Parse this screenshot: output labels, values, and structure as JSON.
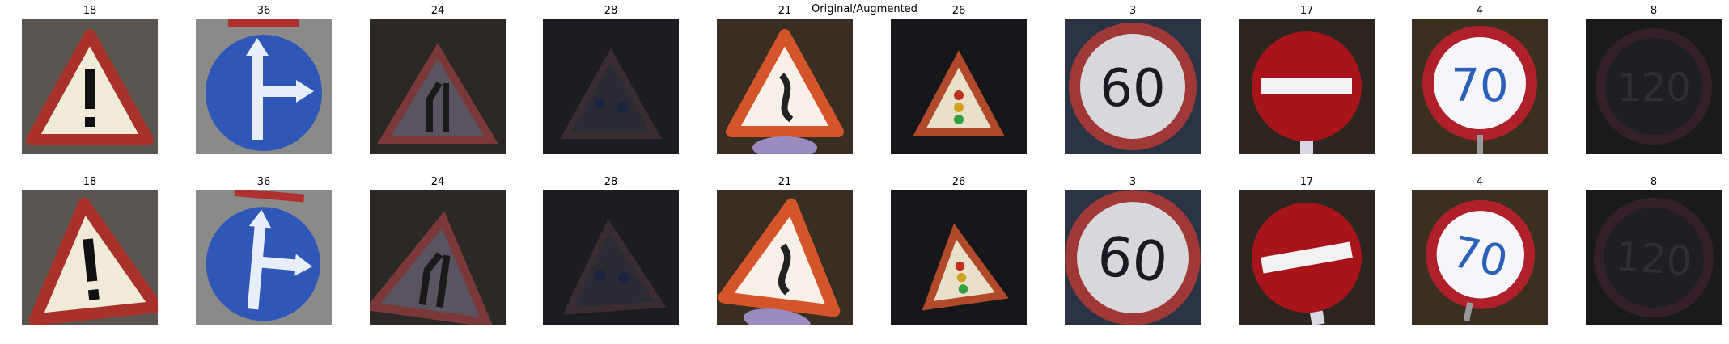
{
  "figure": {
    "suptitle": "Original/Augmented"
  },
  "rows": [
    {
      "name": "original",
      "cells": [
        {
          "label": "18",
          "sign": "warning-exclamation",
          "bg": "#5a5550"
        },
        {
          "label": "36",
          "sign": "blue-straight-or-right",
          "bg": "#8a8a88"
        },
        {
          "label": "24",
          "sign": "road-narrows-right",
          "bg": "#2b2826"
        },
        {
          "label": "28",
          "sign": "children-crossing",
          "bg": "#1c1d22"
        },
        {
          "label": "21",
          "sign": "double-curve",
          "bg": "#3a2d22"
        },
        {
          "label": "26",
          "sign": "traffic-signals",
          "bg": "#15171b"
        },
        {
          "label": "3",
          "sign": "speed-limit-60",
          "bg": "#2a3445"
        },
        {
          "label": "17",
          "sign": "no-entry",
          "bg": "#2d2620"
        },
        {
          "label": "4",
          "sign": "speed-limit-70",
          "bg": "#3b3020"
        },
        {
          "label": "8",
          "sign": "speed-limit-120",
          "bg": "#191a1c"
        }
      ]
    },
    {
      "name": "augmented",
      "cells": [
        {
          "label": "18",
          "sign": "warning-exclamation",
          "bg": "#5a5550"
        },
        {
          "label": "36",
          "sign": "blue-straight-or-right",
          "bg": "#8a8a88"
        },
        {
          "label": "24",
          "sign": "road-narrows-right",
          "bg": "#2b2826"
        },
        {
          "label": "28",
          "sign": "children-crossing",
          "bg": "#1c1d22"
        },
        {
          "label": "21",
          "sign": "double-curve",
          "bg": "#3a2d22"
        },
        {
          "label": "26",
          "sign": "traffic-signals",
          "bg": "#15171b"
        },
        {
          "label": "3",
          "sign": "speed-limit-60",
          "bg": "#2a3445"
        },
        {
          "label": "17",
          "sign": "no-entry",
          "bg": "#2d2620"
        },
        {
          "label": "4",
          "sign": "speed-limit-70",
          "bg": "#3b3020"
        },
        {
          "label": "8",
          "sign": "speed-limit-120",
          "bg": "#191a1c"
        }
      ]
    }
  ]
}
